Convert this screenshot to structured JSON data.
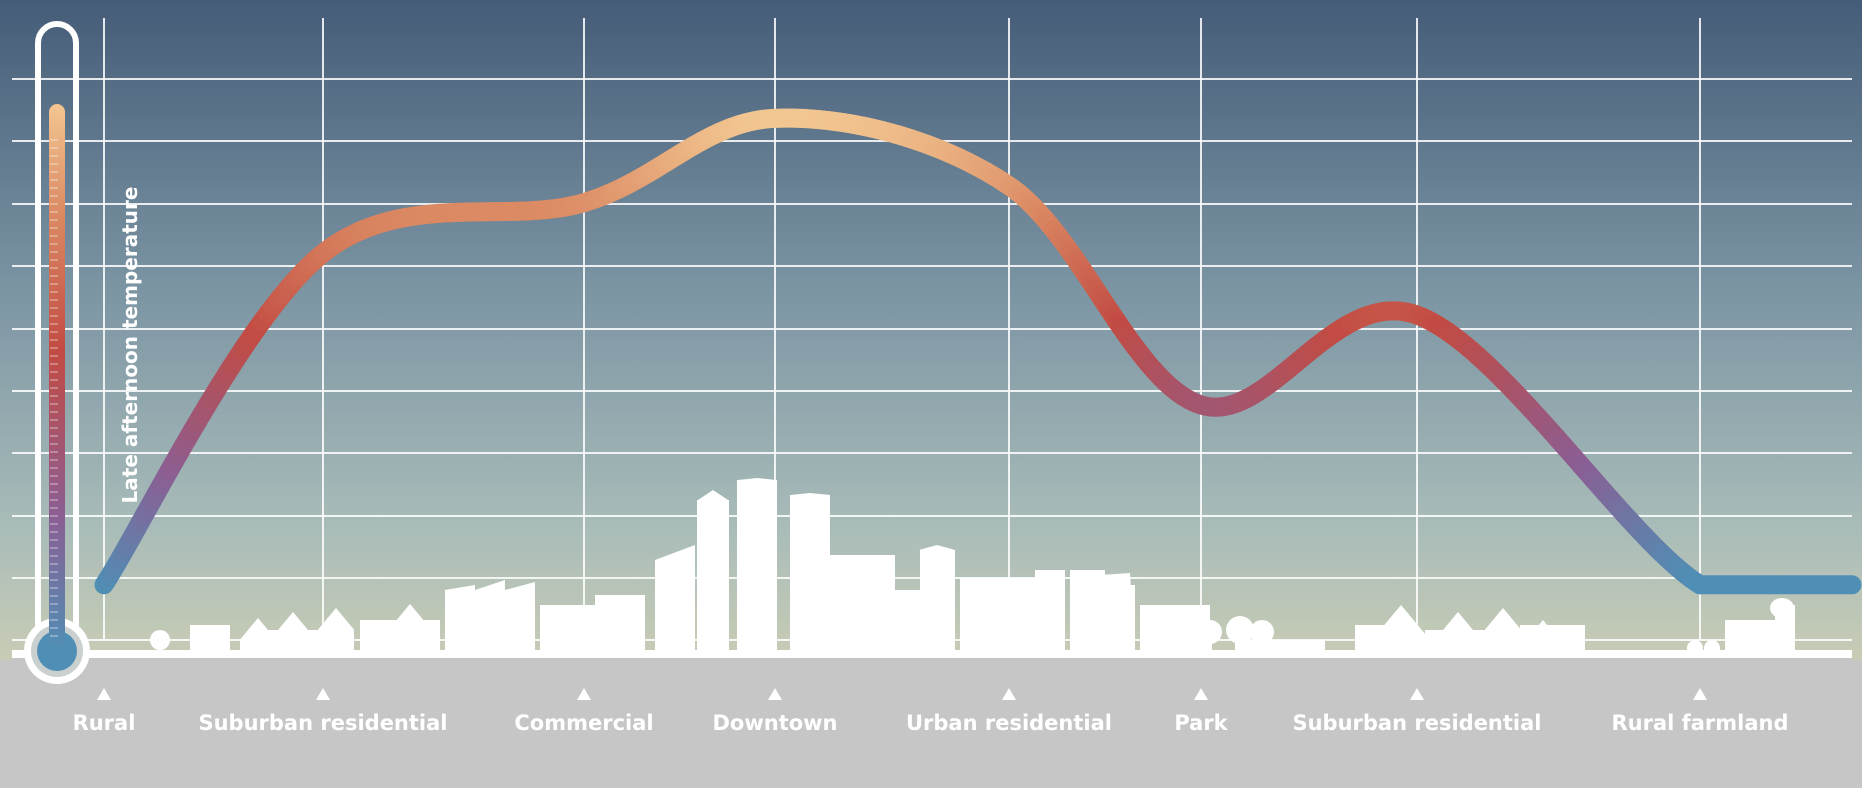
{
  "chart_data": {
    "type": "line",
    "title": "",
    "ylabel": "Late afternoon temperature",
    "xlabel": "",
    "grid": true,
    "legend": "none",
    "ylim": [
      0,
      10
    ],
    "categories": [
      "Rural",
      "Suburban residential",
      "Commercial",
      "Downtown",
      "Urban residential",
      "Park",
      "Suburban residential",
      "Rural farmland"
    ],
    "series": [
      {
        "values": [
          1.0,
          6.9,
          7.8,
          9.3,
          8.1,
          4.2,
          5.8,
          1.0
        ]
      }
    ],
    "colors": {
      "cool": "#4f8fb5",
      "mid": "#8b5e93",
      "warm": "#c24b43",
      "hot": "#f2c691"
    }
  }
}
